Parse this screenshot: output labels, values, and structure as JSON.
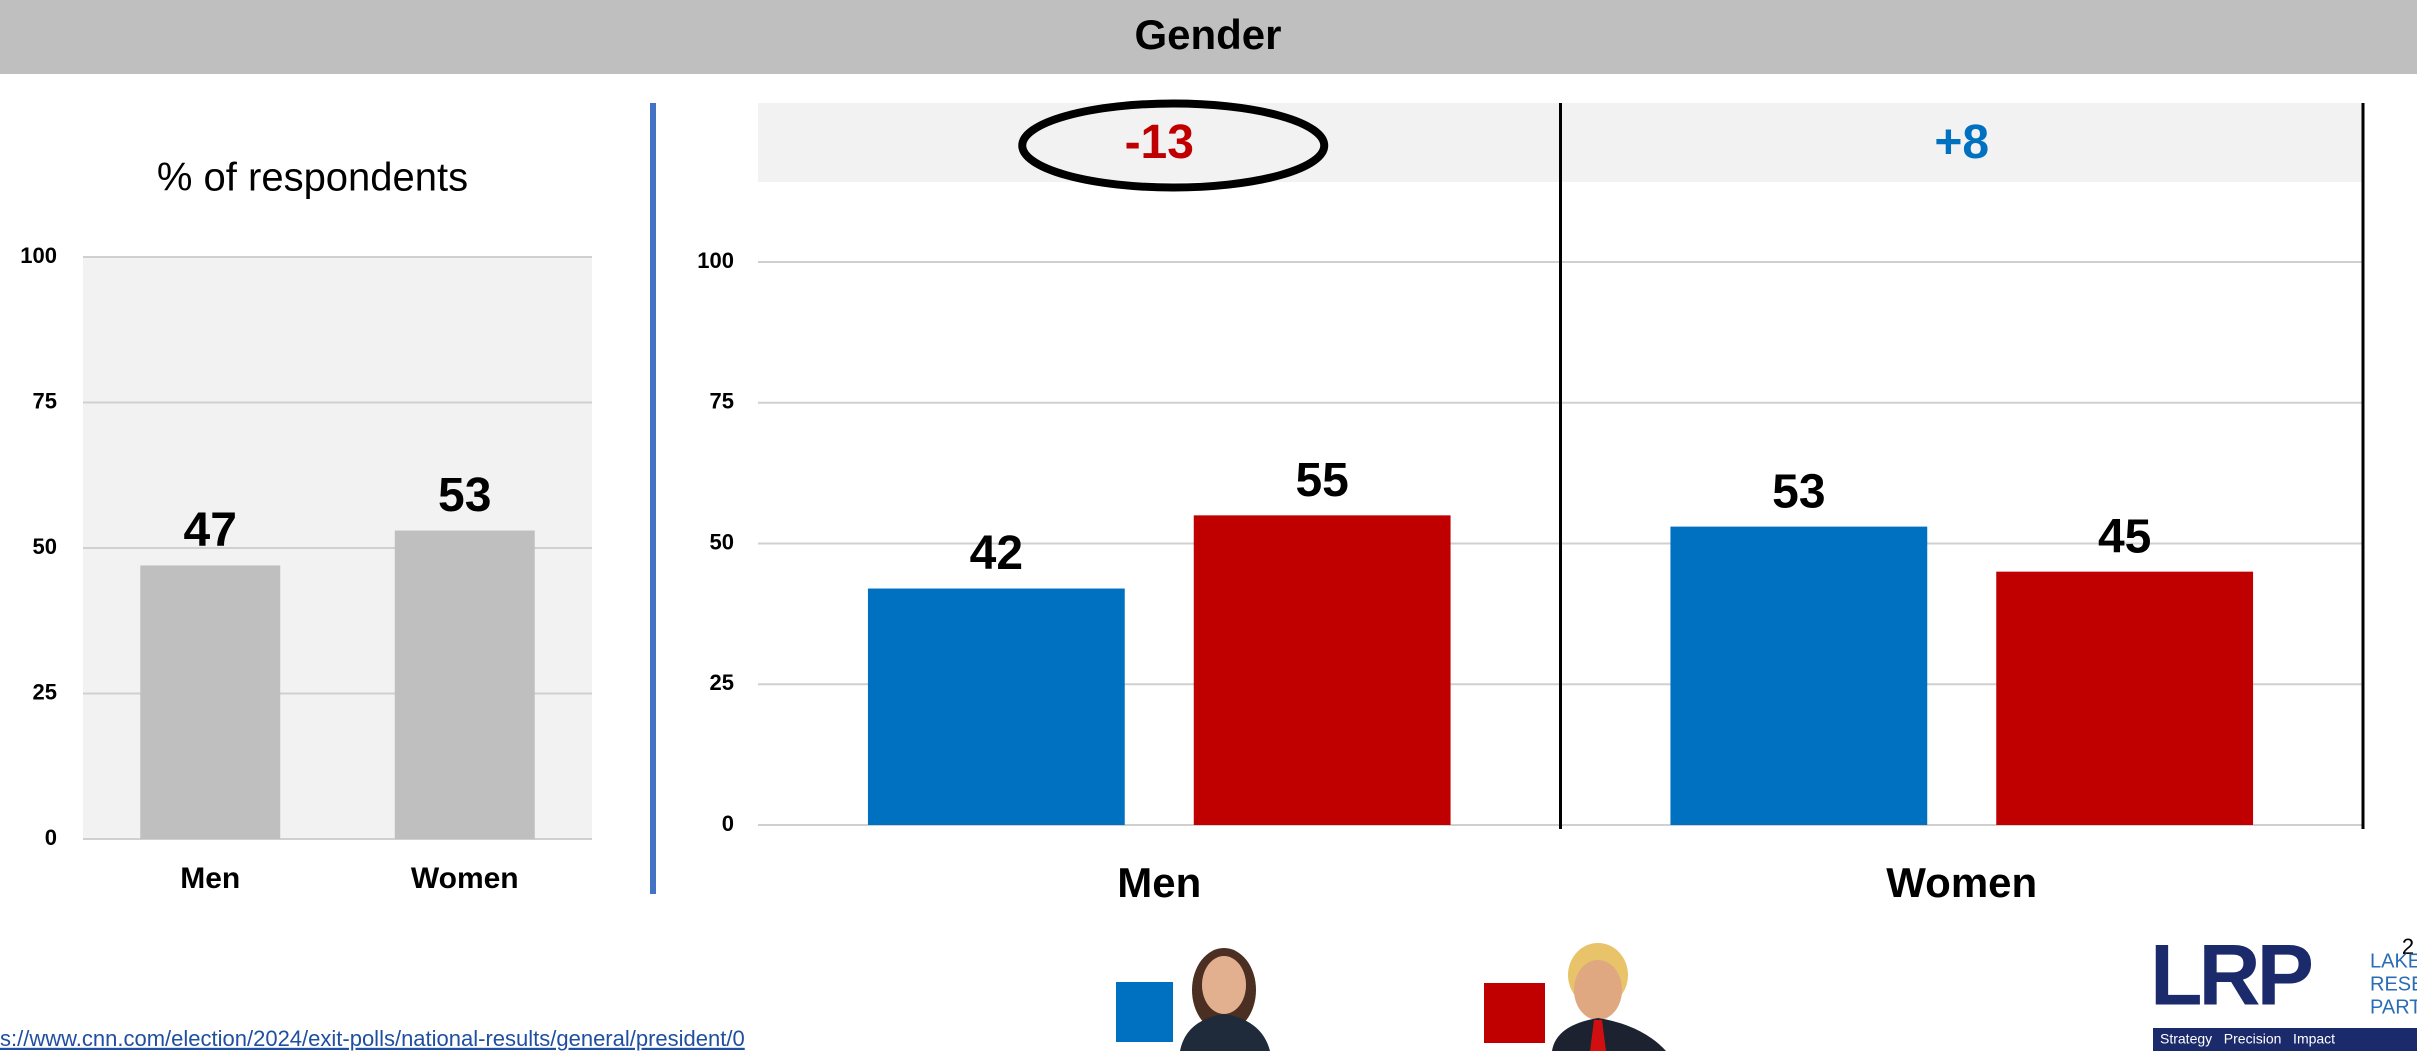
{
  "header": {
    "title": "Gender"
  },
  "chart_data": [
    {
      "type": "bar",
      "title": "% of respondents",
      "categories": [
        "Men",
        "Women"
      ],
      "values": [
        47,
        53
      ],
      "color": "#bfbfbf",
      "ylim": [
        0,
        100
      ],
      "yticks": [
        0,
        25,
        50,
        75,
        100
      ],
      "grid": true,
      "plot_background": "#f2f2f2"
    },
    {
      "type": "bar",
      "categories": [
        "Men",
        "Women"
      ],
      "series": [
        {
          "color": "#0070c0",
          "values": [
            42,
            53
          ]
        },
        {
          "color": "#c00000",
          "values": [
            55,
            45
          ]
        }
      ],
      "ylim": [
        0,
        100
      ],
      "yticks": [
        0,
        25,
        50,
        75,
        100
      ],
      "grid": true,
      "annotations": [
        {
          "text": "-13",
          "color": "#c00000",
          "circled": true
        },
        {
          "text": "+8",
          "color": "#0070c0",
          "circled": false
        }
      ]
    }
  ],
  "footer": {
    "source": "s://www.cnn.com/election/2024/exit-polls/national-results/general/president/0",
    "page_number": "2"
  },
  "logo": {
    "mark": "LRP",
    "name_lines": [
      "LAKE",
      "RESEARCH",
      "PARTNERS"
    ],
    "tagline": "Strategy   Precision   Impact"
  }
}
